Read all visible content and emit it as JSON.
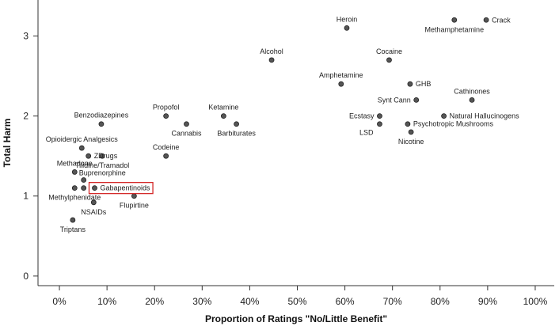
{
  "chart_data": {
    "type": "scatter",
    "title": "",
    "xlabel": "Proportion of Ratings \"No/Little Benefit\"",
    "ylabel": "Total Harm",
    "xlim": [
      -0.045,
      1.04
    ],
    "ylim": [
      -0.12,
      3.45
    ],
    "x_ticks": [
      {
        "value": 0.0,
        "label": "0%"
      },
      {
        "value": 0.1,
        "label": "10%"
      },
      {
        "value": 0.2,
        "label": "20%"
      },
      {
        "value": 0.3,
        "label": "30%"
      },
      {
        "value": 0.4,
        "label": "40%"
      },
      {
        "value": 0.5,
        "label": "50%"
      },
      {
        "value": 0.6,
        "label": "60%"
      },
      {
        "value": 0.7,
        "label": "70%"
      },
      {
        "value": 0.8,
        "label": "80%"
      },
      {
        "value": 0.9,
        "label": "90%"
      },
      {
        "value": 1.0,
        "label": "100%"
      }
    ],
    "y_ticks": [
      {
        "value": 0,
        "label": "0"
      },
      {
        "value": 1,
        "label": "1"
      },
      {
        "value": 2,
        "label": "2"
      },
      {
        "value": 3,
        "label": "3"
      }
    ],
    "grid": false,
    "highlighted": "Gabapentinoids",
    "points": [
      {
        "label": "Heroin",
        "x": 0.604,
        "y": 3.1,
        "label_pos": "above"
      },
      {
        "label": "Methamphetamine",
        "x": 0.83,
        "y": 3.2,
        "label_pos": "below"
      },
      {
        "label": "Crack",
        "x": 0.897,
        "y": 3.2,
        "label_pos": "right"
      },
      {
        "label": "Alcohol",
        "x": 0.446,
        "y": 2.7,
        "label_pos": "above"
      },
      {
        "label": "Cocaine",
        "x": 0.693,
        "y": 2.7,
        "label_pos": "above"
      },
      {
        "label": "Amphetamine",
        "x": 0.592,
        "y": 2.4,
        "label_pos": "above"
      },
      {
        "label": "GHB",
        "x": 0.737,
        "y": 2.4,
        "label_pos": "right"
      },
      {
        "label": "Synt Cann",
        "x": 0.75,
        "y": 2.2,
        "label_pos": "left"
      },
      {
        "label": "Cathinones",
        "x": 0.867,
        "y": 2.2,
        "label_pos": "above"
      },
      {
        "label": "Ecstasy",
        "x": 0.673,
        "y": 2.0,
        "label_pos": "left"
      },
      {
        "label": "Natural Hallucinogens",
        "x": 0.808,
        "y": 2.0,
        "label_pos": "right"
      },
      {
        "label": "LSD",
        "x": 0.673,
        "y": 1.9,
        "label_pos": "leftbelow"
      },
      {
        "label": "Psychotropic Mushrooms",
        "x": 0.732,
        "y": 1.9,
        "label_pos": "right"
      },
      {
        "label": "Nicotine",
        "x": 0.739,
        "y": 1.8,
        "label_pos": "below"
      },
      {
        "label": "Benzodiazepines",
        "x": 0.088,
        "y": 1.9,
        "label_pos": "above"
      },
      {
        "label": "Propofol",
        "x": 0.224,
        "y": 2.0,
        "label_pos": "above"
      },
      {
        "label": "Ketamine",
        "x": 0.345,
        "y": 2.0,
        "label_pos": "above"
      },
      {
        "label": "Cannabis",
        "x": 0.267,
        "y": 1.9,
        "label_pos": "below"
      },
      {
        "label": "Barbiturates",
        "x": 0.372,
        "y": 1.9,
        "label_pos": "below"
      },
      {
        "label": "Codeine",
        "x": 0.224,
        "y": 1.5,
        "label_pos": "above"
      },
      {
        "label": "Opioidergic Analgesics",
        "x": 0.047,
        "y": 1.6,
        "label_pos": "above"
      },
      {
        "label": "ZDrugs",
        "x": 0.061,
        "y": 1.5,
        "label_pos": "right"
      },
      {
        "label": "Tilidine/Tramadol",
        "x": 0.09,
        "y": 1.5,
        "label_pos": "below"
      },
      {
        "label": "Methadone",
        "x": 0.032,
        "y": 1.3,
        "label_pos": "above"
      },
      {
        "label": "Buprenorphine",
        "x": 0.051,
        "y": 1.2,
        "label_pos": "aboveright"
      },
      {
        "label": "Methylphenidate",
        "x": 0.032,
        "y": 1.1,
        "label_pos": "below"
      },
      {
        "label": "Gabapentinoids",
        "x": 0.074,
        "y": 1.1,
        "label_pos": "right"
      },
      {
        "label": "",
        "x": 0.051,
        "y": 1.1,
        "label_pos": "none"
      },
      {
        "label": "NSAIDs",
        "x": 0.072,
        "y": 0.92,
        "label_pos": "below"
      },
      {
        "label": "Flupirtine",
        "x": 0.157,
        "y": 1.0,
        "label_pos": "below"
      },
      {
        "label": "Triptans",
        "x": 0.028,
        "y": 0.7,
        "label_pos": "below"
      }
    ]
  },
  "colors": {
    "point_fill": "#555555",
    "highlight_box": "#d42a2a",
    "axis": "#333333"
  }
}
